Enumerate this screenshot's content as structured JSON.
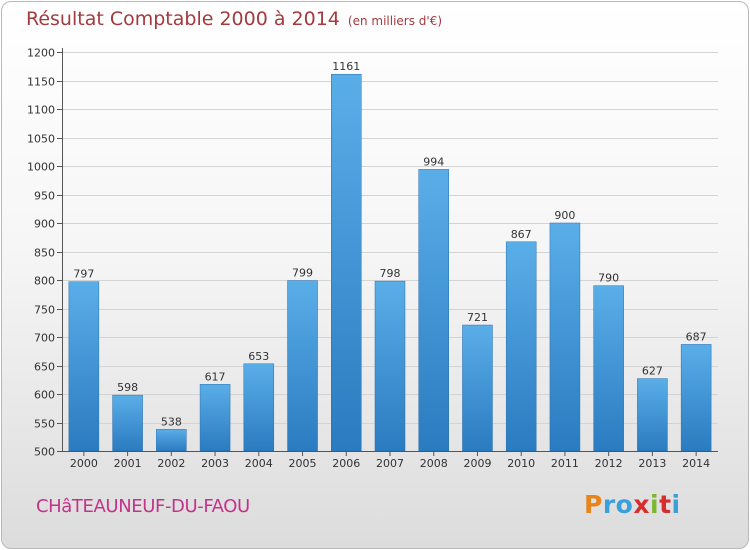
{
  "header": {
    "title": "Résultat Comptable 2000 à 2014",
    "unit": "(en milliers d'€)"
  },
  "footer": {
    "commune": "CHâTEAUNEUF-DU-FAOU",
    "logo": "Proxiti"
  },
  "colors": {
    "title": "#a33a3f",
    "commune": "#c4338a",
    "bar_top": "#5aaee8",
    "bar_bottom": "#2a7bc0",
    "logo_letters": [
      "#e8841a",
      "#39a0dc",
      "#39a0dc",
      "#d62d2d",
      "#7cb82f",
      "#d62d2d",
      "#39a0dc"
    ]
  },
  "chart_data": {
    "type": "bar",
    "title": "Résultat Comptable 2000 à 2014",
    "subtitle": "(en milliers d'€)",
    "categories": [
      "2000",
      "2001",
      "2002",
      "2003",
      "2004",
      "2005",
      "2006",
      "2007",
      "2008",
      "2009",
      "2010",
      "2011",
      "2012",
      "2013",
      "2014"
    ],
    "values": [
      797,
      598,
      538,
      617,
      653,
      799,
      1161,
      798,
      994,
      721,
      867,
      900,
      790,
      627,
      687
    ],
    "ylim": [
      500,
      1200
    ],
    "yticks": [
      500,
      550,
      600,
      650,
      700,
      750,
      800,
      850,
      900,
      950,
      1000,
      1050,
      1100,
      1150,
      1200
    ],
    "grid": true,
    "legend": "none"
  }
}
